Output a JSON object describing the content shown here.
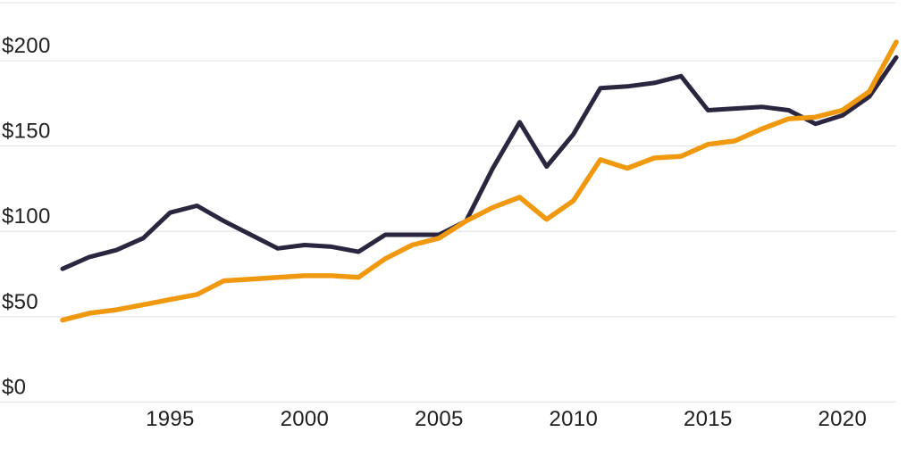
{
  "chart_data": {
    "type": "line",
    "title": "",
    "xlabel": "",
    "ylabel": "",
    "x": [
      1991,
      1992,
      1993,
      1994,
      1995,
      1996,
      1997,
      1998,
      1999,
      2000,
      2001,
      2002,
      2003,
      2004,
      2005,
      2006,
      2007,
      2008,
      2009,
      2010,
      2011,
      2012,
      2013,
      2014,
      2015,
      2016,
      2017,
      2018,
      2019,
      2020,
      2021,
      2022
    ],
    "series": [
      {
        "name": "navy-line",
        "color": "#2b2540",
        "stroke_width": 5,
        "values": [
          78,
          85,
          89,
          96,
          111,
          115,
          106,
          98,
          90,
          92,
          91,
          88,
          98,
          98,
          98,
          106,
          137,
          164,
          138,
          157,
          184,
          185,
          187,
          191,
          171,
          172,
          173,
          171,
          163,
          168,
          179,
          202
        ]
      },
      {
        "name": "orange-line",
        "color": "#f0990f",
        "stroke_width": 5.5,
        "values": [
          48,
          52,
          54,
          57,
          60,
          63,
          71,
          72,
          73,
          74,
          74,
          73,
          84,
          92,
          96,
          106,
          114,
          120,
          107,
          118,
          142,
          137,
          143,
          144,
          151,
          153,
          160,
          166,
          167,
          171,
          182,
          211
        ]
      }
    ],
    "xlim": [
      1991,
      2022
    ],
    "ylim": [
      0,
      235
    ],
    "x_ticks": [
      1995,
      2000,
      2005,
      2010,
      2015,
      2020
    ],
    "x_tick_labels": [
      "1995",
      "2000",
      "2005",
      "2010",
      "2015",
      "2020"
    ],
    "y_ticks": [
      0,
      50,
      100,
      150,
      200
    ],
    "y_tick_labels": [
      "$0",
      "$50",
      "$100",
      "$150",
      "$200"
    ],
    "grid": "horizontal",
    "legend": "none",
    "background_color": "#ffffff",
    "gridline_color": "#e7e7e7",
    "tick_label_color": "#202020"
  }
}
